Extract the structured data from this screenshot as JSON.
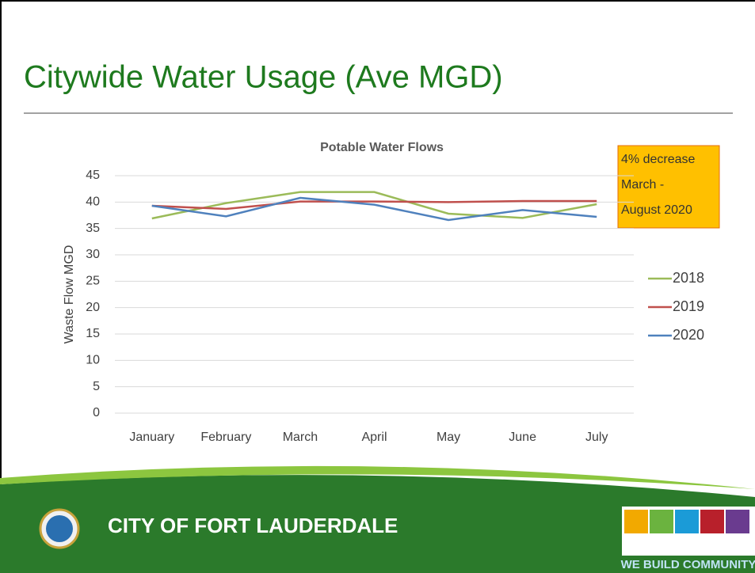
{
  "slide_title": "Citywide Water Usage (Ave MGD)",
  "footer": {
    "city": "CITY OF FORT LAUDERDALE",
    "tagline": "WE BUILD COMMUNITY"
  },
  "chart_data": {
    "type": "line",
    "title": "Potable Water Flows",
    "y_label": "Waste Flow MGD",
    "categories": [
      "January",
      "February",
      "March",
      "April",
      "May",
      "June",
      "July"
    ],
    "series": [
      {
        "name": "2018",
        "color": "#9bbb59",
        "values": [
          36.9,
          39.8,
          41.9,
          41.9,
          37.8,
          37.0,
          39.6
        ]
      },
      {
        "name": "2019",
        "color": "#c0504d",
        "values": [
          39.3,
          38.7,
          40.1,
          40.1,
          40.0,
          40.2,
          40.2
        ]
      },
      {
        "name": "2020",
        "color": "#4f81bd",
        "values": [
          39.3,
          37.3,
          40.8,
          39.5,
          36.6,
          38.5,
          37.2
        ]
      }
    ],
    "ylim": [
      0,
      45
    ],
    "yticks": [
      0,
      5,
      10,
      15,
      20,
      25,
      30,
      35,
      40,
      45
    ],
    "grid": true,
    "legend": "right",
    "annotation": [
      "4% decrease",
      "March -",
      "August 2020"
    ]
  }
}
